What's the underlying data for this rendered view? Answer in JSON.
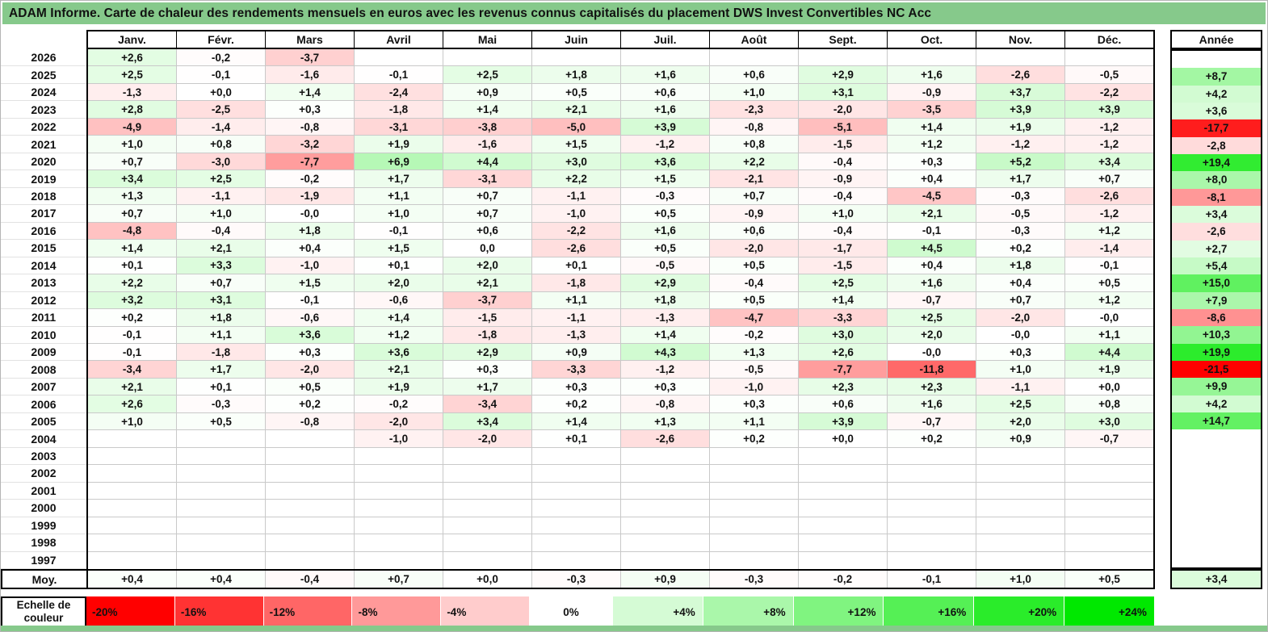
{
  "title": "ADAM Informe. Carte de chaleur des rendements mensuels en euros avec les revenus connus capitalisés du placement DWS Invest Convertibles NC Acc",
  "colors": {
    "title_background": "#86C98B",
    "negative_end": "#FF0000",
    "positive_end": "#00E800",
    "zero": "#FFFFFF",
    "grid_line": "#C9C9C9",
    "border": "#000000"
  },
  "chart_data": {
    "type": "heatmap",
    "title": "ADAM Informe. Carte de chaleur des rendements mensuels en euros avec les revenus connus capitalisés du placement DWS Invest Convertibles NC Acc",
    "unit": "%",
    "columns": [
      "Janv.",
      "Févr.",
      "Mars",
      "Avril",
      "Mai",
      "Juin",
      "Juil.",
      "Août",
      "Sept.",
      "Oct.",
      "Nov.",
      "Déc."
    ],
    "annee_column": "Année",
    "rows": [
      {
        "year": "2026",
        "values": [
          "+2,6",
          "-0,2",
          "-3,7",
          null,
          null,
          null,
          null,
          null,
          null,
          null,
          null,
          null
        ],
        "annee": null
      },
      {
        "year": "2025",
        "values": [
          "+2,5",
          "-0,1",
          "-1,6",
          "-0,1",
          "+2,5",
          "+1,8",
          "+1,6",
          "+0,6",
          "+2,9",
          "+1,6",
          "-2,6",
          "-0,5"
        ],
        "annee": "+8,7"
      },
      {
        "year": "2024",
        "values": [
          "-1,3",
          "+0,0",
          "+1,4",
          "-2,4",
          "+0,9",
          "+0,5",
          "+0,6",
          "+1,0",
          "+3,1",
          "-0,9",
          "+3,7",
          "-2,2"
        ],
        "annee": "+4,2"
      },
      {
        "year": "2023",
        "values": [
          "+2,8",
          "-2,5",
          "+0,3",
          "-1,8",
          "+1,4",
          "+2,1",
          "+1,6",
          "-2,3",
          "-2,0",
          "-3,5",
          "+3,9",
          "+3,9"
        ],
        "annee": "+3,6"
      },
      {
        "year": "2022",
        "values": [
          "-4,9",
          "-1,4",
          "-0,8",
          "-3,1",
          "-3,8",
          "-5,0",
          "+3,9",
          "-0,8",
          "-5,1",
          "+1,4",
          "+1,9",
          "-1,2"
        ],
        "annee": "-17,7"
      },
      {
        "year": "2021",
        "values": [
          "+1,0",
          "+0,8",
          "-3,2",
          "+1,9",
          "-1,6",
          "+1,5",
          "-1,2",
          "+0,8",
          "-1,5",
          "+1,2",
          "-1,2",
          "-1,2"
        ],
        "annee": "-2,8"
      },
      {
        "year": "2020",
        "values": [
          "+0,7",
          "-3,0",
          "-7,7",
          "+6,9",
          "+4,4",
          "+3,0",
          "+3,6",
          "+2,2",
          "-0,4",
          "+0,3",
          "+5,2",
          "+3,4"
        ],
        "annee": "+19,4"
      },
      {
        "year": "2019",
        "values": [
          "+3,4",
          "+2,5",
          "-0,2",
          "+1,7",
          "-3,1",
          "+2,2",
          "+1,5",
          "-2,1",
          "-0,9",
          "+0,4",
          "+1,7",
          "+0,7"
        ],
        "annee": "+8,0"
      },
      {
        "year": "2018",
        "values": [
          "+1,3",
          "-1,1",
          "-1,9",
          "+1,1",
          "+0,7",
          "-1,1",
          "-0,3",
          "+0,7",
          "-0,4",
          "-4,5",
          "-0,3",
          "-2,6"
        ],
        "annee": "-8,1"
      },
      {
        "year": "2017",
        "values": [
          "+0,7",
          "+1,0",
          "-0,0",
          "+1,0",
          "+0,7",
          "-1,0",
          "+0,5",
          "-0,9",
          "+1,0",
          "+2,1",
          "-0,5",
          "-1,2"
        ],
        "annee": "+3,4"
      },
      {
        "year": "2016",
        "values": [
          "-4,8",
          "-0,4",
          "+1,8",
          "-0,1",
          "+0,6",
          "-2,2",
          "+1,6",
          "+0,6",
          "-0,4",
          "-0,1",
          "-0,3",
          "+1,2"
        ],
        "annee": "-2,6"
      },
      {
        "year": "2015",
        "values": [
          "+1,4",
          "+2,1",
          "+0,4",
          "+1,5",
          "0,0",
          "-2,6",
          "+0,5",
          "-2,0",
          "-1,7",
          "+4,5",
          "+0,2",
          "-1,4"
        ],
        "annee": "+2,7"
      },
      {
        "year": "2014",
        "values": [
          "+0,1",
          "+3,3",
          "-1,0",
          "+0,1",
          "+2,0",
          "+0,1",
          "-0,5",
          "+0,5",
          "-1,5",
          "+0,4",
          "+1,8",
          "-0,1"
        ],
        "annee": "+5,4"
      },
      {
        "year": "2013",
        "values": [
          "+2,2",
          "+0,7",
          "+1,5",
          "+2,0",
          "+2,1",
          "-1,8",
          "+2,9",
          "-0,4",
          "+2,5",
          "+1,6",
          "+0,4",
          "+0,5"
        ],
        "annee": "+15,0"
      },
      {
        "year": "2012",
        "values": [
          "+3,2",
          "+3,1",
          "-0,1",
          "-0,6",
          "-3,7",
          "+1,1",
          "+1,8",
          "+0,5",
          "+1,4",
          "-0,7",
          "+0,7",
          "+1,2"
        ],
        "annee": "+7,9"
      },
      {
        "year": "2011",
        "values": [
          "+0,2",
          "+1,8",
          "-0,6",
          "+1,4",
          "-1,5",
          "-1,1",
          "-1,3",
          "-4,7",
          "-3,3",
          "+2,5",
          "-2,0",
          "-0,0"
        ],
        "annee": "-8,6"
      },
      {
        "year": "2010",
        "values": [
          "-0,1",
          "+1,1",
          "+3,6",
          "+1,2",
          "-1,8",
          "-1,3",
          "+1,4",
          "-0,2",
          "+3,0",
          "+2,0",
          "-0,0",
          "+1,1"
        ],
        "annee": "+10,3"
      },
      {
        "year": "2009",
        "values": [
          "-0,1",
          "-1,8",
          "+0,3",
          "+3,6",
          "+2,9",
          "+0,9",
          "+4,3",
          "+1,3",
          "+2,6",
          "-0,0",
          "+0,3",
          "+4,4"
        ],
        "annee": "+19,9"
      },
      {
        "year": "2008",
        "values": [
          "-3,4",
          "+1,7",
          "-2,0",
          "+2,1",
          "+0,3",
          "-3,3",
          "-1,2",
          "-0,5",
          "-7,7",
          "-11,8",
          "+1,0",
          "+1,9"
        ],
        "annee": "-21,5"
      },
      {
        "year": "2007",
        "values": [
          "+2,1",
          "+0,1",
          "+0,5",
          "+1,9",
          "+1,7",
          "+0,3",
          "+0,3",
          "-1,0",
          "+2,3",
          "+2,3",
          "-1,1",
          "+0,0"
        ],
        "annee": "+9,9"
      },
      {
        "year": "2006",
        "values": [
          "+2,6",
          "-0,3",
          "+0,2",
          "-0,2",
          "-3,4",
          "+0,2",
          "-0,8",
          "+0,3",
          "+0,6",
          "+1,6",
          "+2,5",
          "+0,8"
        ],
        "annee": "+4,2"
      },
      {
        "year": "2005",
        "values": [
          "+1,0",
          "+0,5",
          "-0,8",
          "-2,0",
          "+3,4",
          "+1,4",
          "+1,3",
          "+1,1",
          "+3,9",
          "-0,7",
          "+2,0",
          "+3,0"
        ],
        "annee": "+14,7"
      },
      {
        "year": "2004",
        "values": [
          null,
          null,
          null,
          "-1,0",
          "-2,0",
          "+0,1",
          "-2,6",
          "+0,2",
          "+0,0",
          "+0,2",
          "+0,9",
          "-0,7"
        ],
        "annee": null
      },
      {
        "year": "2003",
        "values": [
          null,
          null,
          null,
          null,
          null,
          null,
          null,
          null,
          null,
          null,
          null,
          null
        ],
        "annee": null
      },
      {
        "year": "2002",
        "values": [
          null,
          null,
          null,
          null,
          null,
          null,
          null,
          null,
          null,
          null,
          null,
          null
        ],
        "annee": null
      },
      {
        "year": "2001",
        "values": [
          null,
          null,
          null,
          null,
          null,
          null,
          null,
          null,
          null,
          null,
          null,
          null
        ],
        "annee": null
      },
      {
        "year": "2000",
        "values": [
          null,
          null,
          null,
          null,
          null,
          null,
          null,
          null,
          null,
          null,
          null,
          null
        ],
        "annee": null
      },
      {
        "year": "1999",
        "values": [
          null,
          null,
          null,
          null,
          null,
          null,
          null,
          null,
          null,
          null,
          null,
          null
        ],
        "annee": null
      },
      {
        "year": "1998",
        "values": [
          null,
          null,
          null,
          null,
          null,
          null,
          null,
          null,
          null,
          null,
          null,
          null
        ],
        "annee": null
      },
      {
        "year": "1997",
        "values": [
          null,
          null,
          null,
          null,
          null,
          null,
          null,
          null,
          null,
          null,
          null,
          null
        ],
        "annee": null
      }
    ],
    "moy": {
      "label": "Moy.",
      "values": [
        "+0,4",
        "+0,4",
        "-0,4",
        "+0,7",
        "+0,0",
        "-0,3",
        "+0,9",
        "-0,3",
        "-0,2",
        "-0,1",
        "+1,0",
        "+0,5"
      ],
      "annee": "+3,4"
    },
    "color_scale": {
      "label": "Echelle de couleur",
      "neg_limit": 20,
      "pos_limit": 24,
      "stops": [
        {
          "label": "-20%",
          "value": -20
        },
        {
          "label": "-16%",
          "value": -16
        },
        {
          "label": "-12%",
          "value": -12
        },
        {
          "label": "-8%",
          "value": -8
        },
        {
          "label": "-4%",
          "value": -4
        },
        {
          "label": "0%",
          "value": 0
        },
        {
          "label": "+4%",
          "value": 4
        },
        {
          "label": "+8%",
          "value": 8
        },
        {
          "label": "+12%",
          "value": 12
        },
        {
          "label": "+16%",
          "value": 16
        },
        {
          "label": "+20%",
          "value": 20
        },
        {
          "label": "+24%",
          "value": 24
        }
      ]
    }
  }
}
